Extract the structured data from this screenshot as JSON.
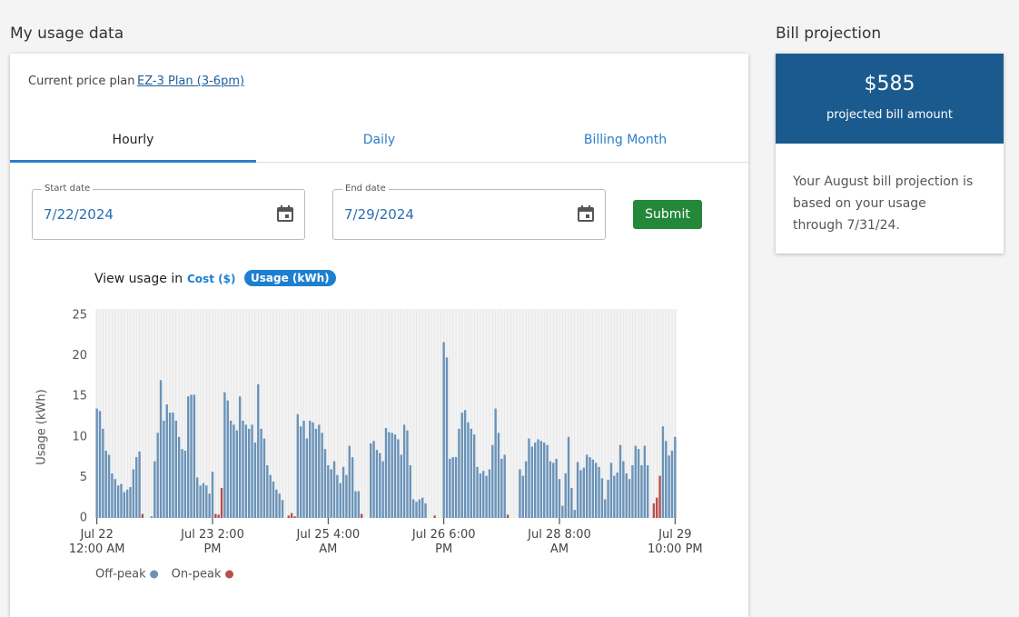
{
  "header": {
    "title": "My usage data"
  },
  "price_plan": {
    "label": "Current price plan",
    "plan": "EZ-3 Plan (3-6pm)"
  },
  "tabs": [
    "Hourly",
    "Daily",
    "Billing Month"
  ],
  "date_form": {
    "start_label": "Start date",
    "start_value": "7/22/2024",
    "end_label": "End date",
    "end_value": "7/29/2024",
    "submit": "Submit"
  },
  "view_toggle": {
    "label": "View usage in",
    "options": [
      "Cost ($)",
      "Usage (kWh)"
    ]
  },
  "chart_data": {
    "type": "bar",
    "ylabel": "Usage (kWh)",
    "ylim": [
      0,
      25
    ],
    "yticks": [
      0,
      5,
      10,
      15,
      20,
      25
    ],
    "legend": "bottom",
    "categories": [
      "Jul 22 12:00 AM",
      null,
      null,
      null,
      null,
      null,
      null,
      null,
      null,
      null,
      null,
      null,
      null,
      null,
      null,
      null,
      null,
      null,
      null,
      null,
      null,
      null,
      null,
      null,
      null,
      null,
      null,
      null,
      null,
      null,
      null,
      null,
      null,
      null,
      null,
      null,
      null,
      null,
      "Jul 23 2:00 PM",
      null,
      null,
      null,
      null,
      null,
      null,
      null,
      null,
      null,
      null,
      null,
      null,
      null,
      null,
      null,
      null,
      null,
      null,
      null,
      null,
      null,
      null,
      null,
      null,
      null,
      null,
      null,
      null,
      null,
      null,
      null,
      null,
      null,
      null,
      null,
      null,
      null,
      "Jul 25 4:00 AM",
      null,
      null,
      null,
      null,
      null,
      null,
      null,
      null,
      null,
      null,
      null,
      null,
      null,
      null,
      null,
      null,
      null,
      null,
      null,
      null,
      null,
      null,
      null,
      null,
      null,
      null,
      null,
      null,
      null,
      null,
      null,
      null,
      null,
      null,
      null,
      null,
      null,
      "Jul 26 6:00 PM",
      null,
      null,
      null,
      null,
      null,
      null,
      null,
      null,
      null,
      null,
      null,
      null,
      null,
      null,
      null,
      null,
      null,
      null,
      null,
      null,
      null,
      null,
      null,
      null,
      null,
      null,
      null,
      null,
      null,
      null,
      null,
      null,
      null,
      null,
      null,
      null,
      null,
      "Jul 28 8:00 AM",
      null,
      null,
      null,
      null,
      null,
      null,
      null,
      null,
      null,
      null,
      null,
      null,
      null,
      null,
      null,
      null,
      null,
      null,
      null,
      null,
      null,
      null,
      null,
      null,
      null,
      null,
      null,
      null,
      null,
      null,
      null,
      null,
      null,
      null,
      null,
      null,
      null,
      "Jul 29 10:00 PM"
    ],
    "series": [
      {
        "name": "Off-peak",
        "color": "#6a93b9",
        "values": [
          13.5,
          13.2,
          11,
          8.3,
          7.8,
          5.5,
          4.8,
          4,
          4.2,
          3.2,
          3.5,
          3.8,
          6,
          7.5,
          8.2,
          null,
          0,
          0,
          0.2,
          7,
          10.5,
          17,
          12,
          14,
          13,
          13,
          12,
          10,
          8.5,
          8.3,
          15,
          15.2,
          15.2,
          5,
          4,
          4.3,
          4,
          3,
          5.7,
          null,
          null,
          null,
          15.5,
          14.5,
          12,
          11.5,
          10.8,
          15,
          12,
          11.5,
          11,
          11.5,
          9.3,
          16.5,
          11,
          9.8,
          6.5,
          5.3,
          4.5,
          3.5,
          3,
          2.2,
          0,
          null,
          null,
          null,
          12.8,
          11.3,
          12,
          9.8,
          12,
          11.8,
          11,
          11.5,
          10.5,
          8.5,
          6.5,
          6,
          7,
          5.3,
          4.3,
          6.3,
          5.3,
          8.9,
          7.5,
          3.3,
          3.3,
          null,
          0,
          0,
          9.2,
          9.5,
          8.4,
          8,
          7,
          11.1,
          10.6,
          10.5,
          10.3,
          9.7,
          7.8,
          11.5,
          10.8,
          6.5,
          2.3,
          2,
          2.3,
          2.5,
          1.8,
          0,
          0,
          null,
          0,
          0,
          21.7,
          19.8,
          7.3,
          7.5,
          7.5,
          11,
          13,
          13.3,
          11.8,
          11,
          10.3,
          6.3,
          5.5,
          5.8,
          5.2,
          6,
          9,
          13.5,
          10.5,
          7.3,
          7.8,
          null,
          0,
          0,
          0,
          6,
          5.2,
          7,
          9.8,
          8.8,
          9.3,
          9.7,
          9.5,
          9.3,
          9,
          7,
          6.8,
          7.3,
          4.8,
          1.5,
          5.5,
          10,
          3.7,
          1,
          6.9,
          5.9,
          6.2,
          7.8,
          7.5,
          7.2,
          6.8,
          6.3,
          4.9,
          2.3,
          4.7,
          6.8,
          5.2,
          5.6,
          9,
          7,
          5.5,
          4.8,
          6.5,
          8.9,
          8.5,
          6.5,
          8.9,
          6.5,
          0,
          null,
          null,
          null,
          11.3,
          9.5,
          7.7,
          8.3,
          10
        ]
      },
      {
        "name": "On-peak",
        "color": "#b5504e",
        "values": [
          null,
          null,
          null,
          null,
          null,
          null,
          null,
          null,
          null,
          null,
          null,
          null,
          null,
          null,
          null,
          0.5,
          null,
          null,
          null,
          null,
          null,
          null,
          null,
          null,
          null,
          null,
          null,
          null,
          null,
          null,
          null,
          null,
          null,
          null,
          null,
          null,
          null,
          null,
          null,
          0.5,
          0.4,
          3.7,
          null,
          null,
          null,
          null,
          null,
          null,
          null,
          null,
          null,
          null,
          null,
          null,
          null,
          null,
          null,
          null,
          null,
          null,
          null,
          null,
          null,
          0.3,
          0.6,
          0.2,
          null,
          null,
          null,
          null,
          null,
          null,
          null,
          null,
          null,
          null,
          null,
          null,
          null,
          null,
          null,
          null,
          null,
          null,
          null,
          null,
          null,
          0.5,
          null,
          null,
          null,
          null,
          null,
          null,
          null,
          null,
          null,
          null,
          null,
          null,
          null,
          null,
          null,
          null,
          null,
          null,
          null,
          null,
          null,
          null,
          null,
          0.3,
          null,
          null,
          null,
          null,
          null,
          null,
          null,
          null,
          null,
          null,
          null,
          null,
          null,
          null,
          null,
          null,
          null,
          null,
          null,
          null,
          null,
          null,
          null,
          0.4,
          null,
          null,
          null,
          null,
          null,
          null,
          null,
          null,
          null,
          null,
          null,
          null,
          null,
          null,
          null,
          null,
          null,
          null,
          null,
          null,
          null,
          null,
          null,
          null,
          null,
          null,
          null,
          null,
          null,
          null,
          null,
          null,
          null,
          null,
          null,
          null,
          null,
          null,
          null,
          null,
          null,
          null,
          null,
          null,
          null,
          null,
          null,
          1.8,
          2.5,
          5.2,
          null,
          null,
          null,
          null,
          null
        ]
      }
    ]
  },
  "bill_projection": {
    "title": "Bill projection",
    "amount": "$585",
    "amount_label": "projected bill amount",
    "note": "Your August bill projection is based on your usage through 7/31/24."
  }
}
